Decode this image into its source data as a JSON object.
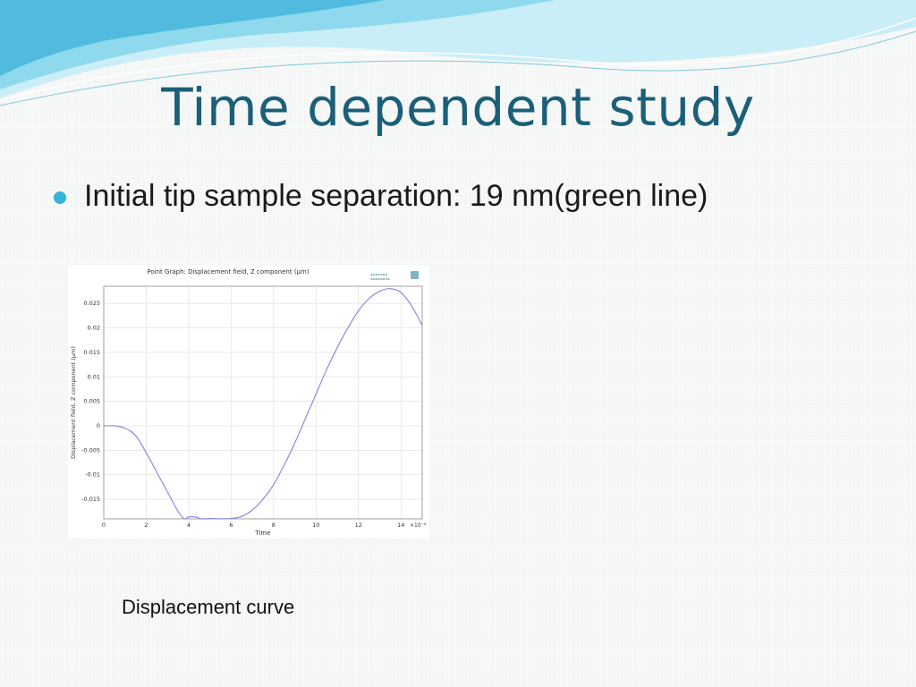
{
  "slide": {
    "title": "Time dependent study",
    "bullet": "Initial tip sample separation: 19 nm(green line)",
    "caption": "Displacement curve"
  },
  "colors": {
    "title": "#1b5f78",
    "bullet_dot": "#35b3d6",
    "curve": "#8b8be0",
    "wave_light": "#c9eef7",
    "wave_mid": "#7fd3ea",
    "wave_dark": "#3bb0d8"
  },
  "icons": {
    "chart_logo": "comsol-logo-icon"
  },
  "chart_data": {
    "type": "line",
    "title": "Point Graph: Displacement field, Z component (µm)",
    "xlabel": "Time",
    "ylabel": "Displacement field, Z component (µm)",
    "x_multiplier_label": "×10⁻⁴",
    "xlim": [
      0,
      15
    ],
    "ylim": [
      -0.019,
      0.0285
    ],
    "x_ticks": [
      0,
      2,
      4,
      6,
      8,
      10,
      12,
      14
    ],
    "y_ticks": [
      -0.015,
      -0.01,
      -0.005,
      0,
      0.005,
      0.01,
      0.015,
      0.02,
      0.025
    ],
    "y_tick_labels": [
      "-0.015",
      "-0.01",
      "-0.005",
      "0",
      "0.005",
      "0.01",
      "0.015",
      "0.02",
      "0.025"
    ],
    "grid": true,
    "series": [
      {
        "x": [
          0,
          0.5,
          1.0,
          1.5,
          2.0,
          2.5,
          3.0,
          3.5,
          3.8,
          4.0,
          4.3,
          4.6,
          5.0,
          5.5,
          6.0,
          6.5,
          7.0,
          7.5,
          8.0,
          8.5,
          9.0,
          9.5,
          10.0,
          10.5,
          11.0,
          11.5,
          12.0,
          12.5,
          13.0,
          13.5,
          14.0,
          14.5,
          15.0
        ],
        "y": [
          0,
          0,
          -0.0005,
          -0.002,
          -0.0055,
          -0.0095,
          -0.0135,
          -0.0175,
          -0.019,
          -0.0186,
          -0.0186,
          -0.019,
          -0.0189,
          -0.019,
          -0.0189,
          -0.0185,
          -0.0172,
          -0.015,
          -0.012,
          -0.008,
          -0.0035,
          0.0015,
          0.0065,
          0.0115,
          0.016,
          0.02,
          0.0235,
          0.026,
          0.0275,
          0.028,
          0.0272,
          0.0245,
          0.0205
        ]
      }
    ]
  }
}
